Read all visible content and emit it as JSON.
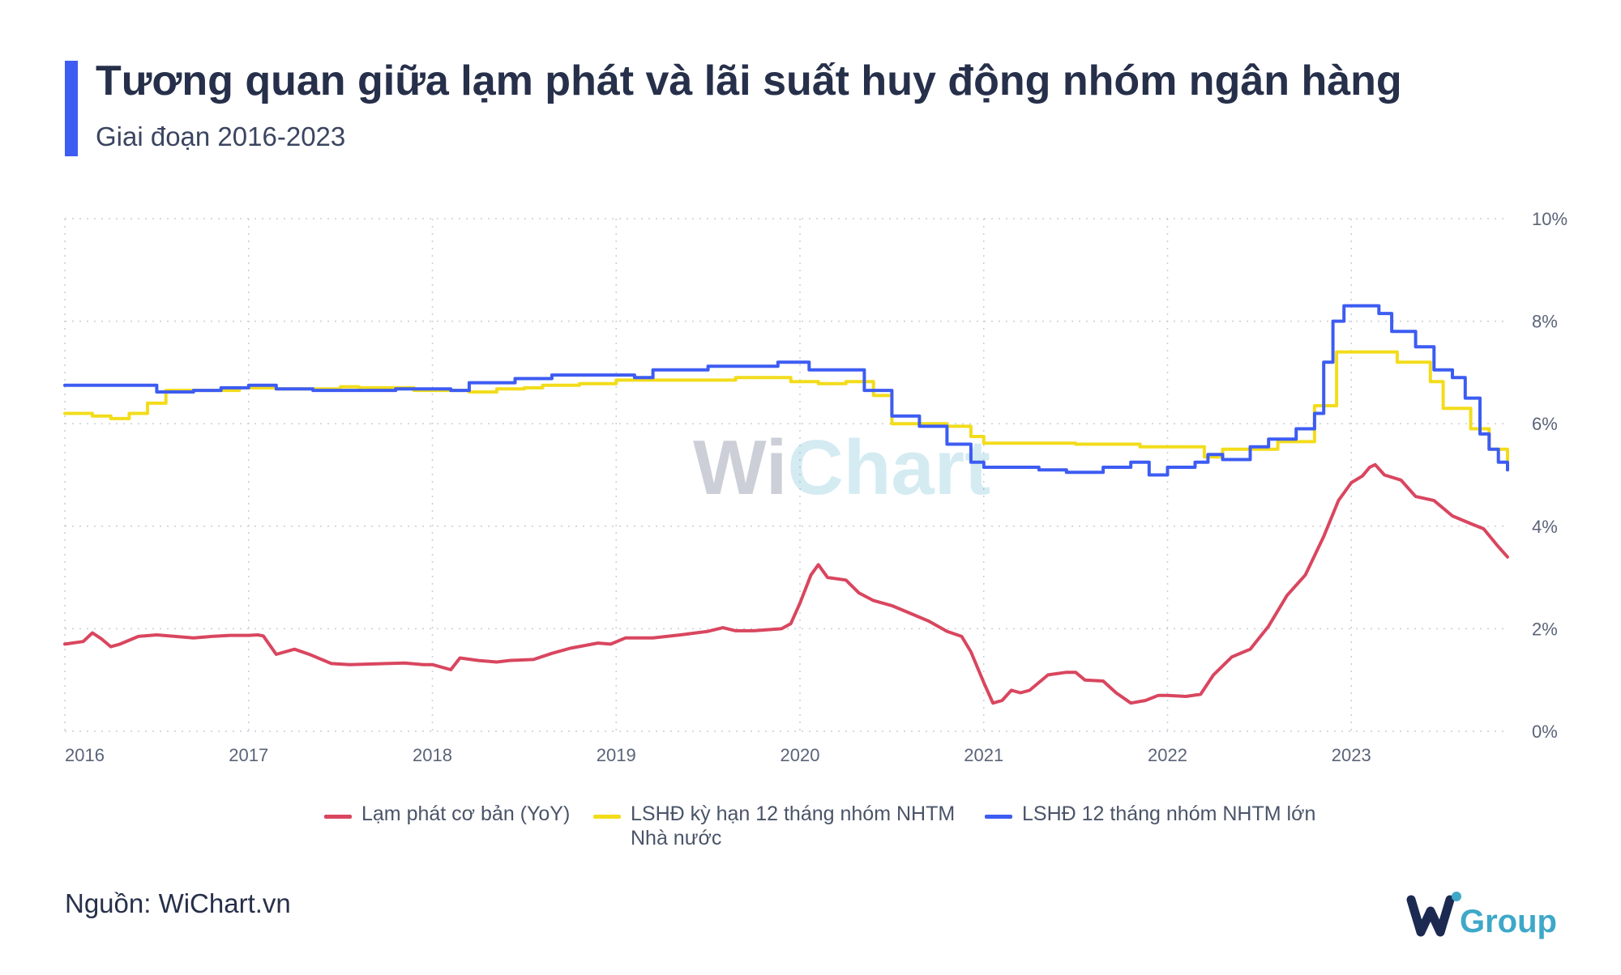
{
  "header": {
    "title": "Tương quan giữa lạm phát và lãi suất huy động nhóm ngân hàng",
    "subtitle": "Giai đoạn 2016-2023"
  },
  "footer": {
    "source": "Nguồn: WiChart.vn",
    "brand_prefix": "Wi",
    "brand_word": "Group"
  },
  "watermark": {
    "prefix": "Wi",
    "word": "Chart"
  },
  "colors": {
    "accent": "#3d5cf2",
    "inflation": "#d9465f",
    "state_bank": "#f2dc1b",
    "large_bank": "#3d5cf2",
    "brand_dark": "#1c2a52",
    "brand_teal": "#3ea8c8"
  },
  "chart_data": {
    "type": "line",
    "x_ticks": [
      "2016",
      "2017",
      "2018",
      "2019",
      "2020",
      "2021",
      "2022",
      "2023"
    ],
    "y_ticks": [
      "0%",
      "2%",
      "4%",
      "6%",
      "8%",
      "10%"
    ],
    "xlim": [
      2016.0,
      2023.85
    ],
    "ylim": [
      0,
      10
    ],
    "y_axis_side": "right",
    "grid": true,
    "legend_position": "bottom",
    "series": [
      {
        "name": "Lạm phát cơ bản (YoY)",
        "color": "#d9465f",
        "step": false,
        "points": [
          [
            2016.0,
            1.7
          ],
          [
            2016.1,
            1.75
          ],
          [
            2016.15,
            1.92
          ],
          [
            2016.2,
            1.8
          ],
          [
            2016.25,
            1.65
          ],
          [
            2016.3,
            1.7
          ],
          [
            2016.4,
            1.85
          ],
          [
            2016.5,
            1.88
          ],
          [
            2016.6,
            1.85
          ],
          [
            2016.7,
            1.82
          ],
          [
            2016.8,
            1.85
          ],
          [
            2016.9,
            1.87
          ],
          [
            2017.0,
            1.87
          ],
          [
            2017.05,
            1.88
          ],
          [
            2017.08,
            1.86
          ],
          [
            2017.15,
            1.5
          ],
          [
            2017.25,
            1.6
          ],
          [
            2017.33,
            1.5
          ],
          [
            2017.45,
            1.32
          ],
          [
            2017.55,
            1.3
          ],
          [
            2017.75,
            1.32
          ],
          [
            2017.85,
            1.33
          ],
          [
            2017.95,
            1.3
          ],
          [
            2018.0,
            1.3
          ],
          [
            2018.1,
            1.2
          ],
          [
            2018.15,
            1.43
          ],
          [
            2018.25,
            1.38
          ],
          [
            2018.35,
            1.35
          ],
          [
            2018.42,
            1.38
          ],
          [
            2018.55,
            1.4
          ],
          [
            2018.65,
            1.52
          ],
          [
            2018.75,
            1.62
          ],
          [
            2018.9,
            1.72
          ],
          [
            2018.97,
            1.7
          ],
          [
            2019.05,
            1.82
          ],
          [
            2019.2,
            1.82
          ],
          [
            2019.35,
            1.88
          ],
          [
            2019.5,
            1.95
          ],
          [
            2019.58,
            2.02
          ],
          [
            2019.65,
            1.96
          ],
          [
            2019.75,
            1.96
          ],
          [
            2019.9,
            2.0
          ],
          [
            2019.95,
            2.1
          ],
          [
            2020.0,
            2.5
          ],
          [
            2020.06,
            3.05
          ],
          [
            2020.1,
            3.25
          ],
          [
            2020.15,
            3.0
          ],
          [
            2020.25,
            2.95
          ],
          [
            2020.32,
            2.7
          ],
          [
            2020.4,
            2.55
          ],
          [
            2020.5,
            2.45
          ],
          [
            2020.6,
            2.3
          ],
          [
            2020.7,
            2.15
          ],
          [
            2020.8,
            1.95
          ],
          [
            2020.88,
            1.85
          ],
          [
            2020.93,
            1.55
          ],
          [
            2021.0,
            0.95
          ],
          [
            2021.05,
            0.55
          ],
          [
            2021.1,
            0.6
          ],
          [
            2021.15,
            0.8
          ],
          [
            2021.2,
            0.75
          ],
          [
            2021.25,
            0.8
          ],
          [
            2021.35,
            1.1
          ],
          [
            2021.45,
            1.15
          ],
          [
            2021.5,
            1.15
          ],
          [
            2021.55,
            1.0
          ],
          [
            2021.65,
            0.98
          ],
          [
            2021.72,
            0.75
          ],
          [
            2021.8,
            0.55
          ],
          [
            2021.88,
            0.6
          ],
          [
            2021.95,
            0.7
          ],
          [
            2022.0,
            0.7
          ],
          [
            2022.1,
            0.68
          ],
          [
            2022.18,
            0.72
          ],
          [
            2022.25,
            1.1
          ],
          [
            2022.35,
            1.45
          ],
          [
            2022.45,
            1.6
          ],
          [
            2022.55,
            2.05
          ],
          [
            2022.65,
            2.65
          ],
          [
            2022.75,
            3.05
          ],
          [
            2022.85,
            3.8
          ],
          [
            2022.93,
            4.5
          ],
          [
            2023.0,
            4.85
          ],
          [
            2023.06,
            4.98
          ],
          [
            2023.1,
            5.15
          ],
          [
            2023.13,
            5.2
          ],
          [
            2023.18,
            5.0
          ],
          [
            2023.27,
            4.9
          ],
          [
            2023.35,
            4.58
          ],
          [
            2023.45,
            4.5
          ],
          [
            2023.55,
            4.2
          ],
          [
            2023.65,
            4.05
          ],
          [
            2023.72,
            3.95
          ],
          [
            2023.8,
            3.6
          ],
          [
            2023.85,
            3.4
          ]
        ]
      },
      {
        "name": "LSHĐ kỳ hạn 12 tháng nhóm NHTM Nhà nước",
        "color": "#f2dc1b",
        "step": true,
        "points": [
          [
            2016.0,
            6.2
          ],
          [
            2016.15,
            6.15
          ],
          [
            2016.25,
            6.1
          ],
          [
            2016.35,
            6.2
          ],
          [
            2016.45,
            6.4
          ],
          [
            2016.55,
            6.65
          ],
          [
            2016.75,
            6.65
          ],
          [
            2016.95,
            6.7
          ],
          [
            2017.15,
            6.68
          ],
          [
            2017.5,
            6.72
          ],
          [
            2017.6,
            6.7
          ],
          [
            2017.9,
            6.65
          ],
          [
            2018.2,
            6.62
          ],
          [
            2018.35,
            6.68
          ],
          [
            2018.5,
            6.7
          ],
          [
            2018.6,
            6.75
          ],
          [
            2018.8,
            6.78
          ],
          [
            2019.0,
            6.85
          ],
          [
            2019.58,
            6.85
          ],
          [
            2019.65,
            6.9
          ],
          [
            2019.95,
            6.82
          ],
          [
            2020.1,
            6.78
          ],
          [
            2020.25,
            6.82
          ],
          [
            2020.4,
            6.55
          ],
          [
            2020.5,
            6.0
          ],
          [
            2020.8,
            5.95
          ],
          [
            2020.93,
            5.75
          ],
          [
            2021.0,
            5.62
          ],
          [
            2021.4,
            5.62
          ],
          [
            2021.5,
            5.6
          ],
          [
            2021.85,
            5.55
          ],
          [
            2022.2,
            5.35
          ],
          [
            2022.3,
            5.5
          ],
          [
            2022.6,
            5.65
          ],
          [
            2022.8,
            6.35
          ],
          [
            2022.92,
            7.4
          ],
          [
            2023.25,
            7.2
          ],
          [
            2023.43,
            6.82
          ],
          [
            2023.5,
            6.3
          ],
          [
            2023.65,
            5.9
          ],
          [
            2023.75,
            5.5
          ],
          [
            2023.85,
            5.3
          ]
        ]
      },
      {
        "name": "LSHĐ 12 tháng nhóm NHTM lớn",
        "color": "#3d5cf2",
        "step": true,
        "points": [
          [
            2016.0,
            6.75
          ],
          [
            2016.5,
            6.62
          ],
          [
            2016.7,
            6.65
          ],
          [
            2016.85,
            6.7
          ],
          [
            2017.0,
            6.75
          ],
          [
            2017.15,
            6.68
          ],
          [
            2017.35,
            6.65
          ],
          [
            2017.65,
            6.65
          ],
          [
            2017.8,
            6.68
          ],
          [
            2018.1,
            6.65
          ],
          [
            2018.2,
            6.8
          ],
          [
            2018.45,
            6.88
          ],
          [
            2018.65,
            6.95
          ],
          [
            2018.95,
            6.95
          ],
          [
            2019.1,
            6.9
          ],
          [
            2019.2,
            7.05
          ],
          [
            2019.5,
            7.12
          ],
          [
            2019.88,
            7.2
          ],
          [
            2020.05,
            7.05
          ],
          [
            2020.35,
            6.65
          ],
          [
            2020.5,
            6.15
          ],
          [
            2020.65,
            5.95
          ],
          [
            2020.8,
            5.6
          ],
          [
            2020.93,
            5.25
          ],
          [
            2021.0,
            5.15
          ],
          [
            2021.3,
            5.1
          ],
          [
            2021.45,
            5.05
          ],
          [
            2021.65,
            5.15
          ],
          [
            2021.8,
            5.25
          ],
          [
            2021.9,
            5.0
          ],
          [
            2022.0,
            5.15
          ],
          [
            2022.15,
            5.25
          ],
          [
            2022.22,
            5.4
          ],
          [
            2022.3,
            5.3
          ],
          [
            2022.45,
            5.55
          ],
          [
            2022.55,
            5.7
          ],
          [
            2022.7,
            5.9
          ],
          [
            2022.8,
            6.2
          ],
          [
            2022.85,
            7.2
          ],
          [
            2022.9,
            8.0
          ],
          [
            2022.96,
            8.3
          ],
          [
            2023.05,
            8.3
          ],
          [
            2023.15,
            8.15
          ],
          [
            2023.22,
            7.8
          ],
          [
            2023.35,
            7.5
          ],
          [
            2023.45,
            7.05
          ],
          [
            2023.55,
            6.9
          ],
          [
            2023.62,
            6.5
          ],
          [
            2023.7,
            5.8
          ],
          [
            2023.75,
            5.5
          ],
          [
            2023.8,
            5.25
          ],
          [
            2023.85,
            5.1
          ]
        ]
      }
    ]
  }
}
